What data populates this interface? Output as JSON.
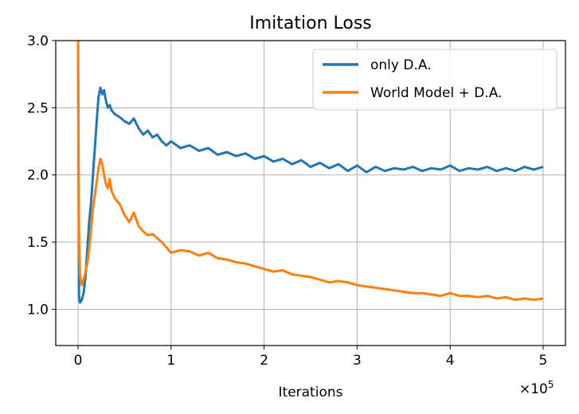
{
  "chart_data": {
    "type": "line",
    "title": "Imitation Loss",
    "xlabel": "Iterations",
    "ylabel": "",
    "x_multiplier_label": "×10",
    "x_multiplier_exponent": "5",
    "xlim": [
      -0.24,
      5.24
    ],
    "ylim": [
      0.73,
      3.0
    ],
    "xticks": [
      0,
      1,
      2,
      3,
      4,
      5
    ],
    "xtick_labels": [
      "0",
      "1",
      "2",
      "3",
      "4",
      "5"
    ],
    "yticks": [
      1.0,
      1.5,
      2.0,
      2.5,
      3.0
    ],
    "ytick_labels": [
      "1.0",
      "1.5",
      "2.0",
      "2.5",
      "3.0"
    ],
    "grid": true,
    "legend_position": "top-right",
    "series": [
      {
        "name": "only D.A.",
        "color": "#1f77b4",
        "x": [
          0,
          0.01,
          0.02,
          0.04,
          0.06,
          0.08,
          0.1,
          0.12,
          0.14,
          0.16,
          0.18,
          0.2,
          0.22,
          0.24,
          0.26,
          0.28,
          0.3,
          0.32,
          0.34,
          0.36,
          0.4,
          0.45,
          0.5,
          0.55,
          0.6,
          0.65,
          0.7,
          0.75,
          0.8,
          0.85,
          0.9,
          0.95,
          1.0,
          1.1,
          1.2,
          1.3,
          1.4,
          1.5,
          1.6,
          1.7,
          1.8,
          1.9,
          2.0,
          2.1,
          2.2,
          2.3,
          2.4,
          2.5,
          2.6,
          2.7,
          2.8,
          2.9,
          3.0,
          3.1,
          3.2,
          3.3,
          3.4,
          3.5,
          3.6,
          3.7,
          3.8,
          3.9,
          4.0,
          4.1,
          4.2,
          4.3,
          4.4,
          4.5,
          4.6,
          4.7,
          4.8,
          4.9,
          5.0
        ],
        "values": [
          3.0,
          1.1,
          1.05,
          1.07,
          1.12,
          1.25,
          1.45,
          1.65,
          1.8,
          2.0,
          2.2,
          2.4,
          2.58,
          2.65,
          2.6,
          2.63,
          2.55,
          2.5,
          2.52,
          2.48,
          2.45,
          2.43,
          2.4,
          2.38,
          2.42,
          2.35,
          2.3,
          2.33,
          2.28,
          2.3,
          2.25,
          2.22,
          2.25,
          2.2,
          2.22,
          2.18,
          2.2,
          2.15,
          2.17,
          2.14,
          2.16,
          2.12,
          2.14,
          2.1,
          2.12,
          2.08,
          2.11,
          2.06,
          2.09,
          2.05,
          2.08,
          2.03,
          2.07,
          2.02,
          2.06,
          2.03,
          2.05,
          2.04,
          2.06,
          2.03,
          2.05,
          2.04,
          2.07,
          2.03,
          2.05,
          2.04,
          2.06,
          2.03,
          2.05,
          2.03,
          2.06,
          2.04,
          2.06
        ]
      },
      {
        "name": "World Model + D.A.",
        "color": "#ff7f0e",
        "x": [
          0,
          0.01,
          0.02,
          0.04,
          0.06,
          0.08,
          0.1,
          0.12,
          0.14,
          0.16,
          0.18,
          0.2,
          0.22,
          0.24,
          0.26,
          0.28,
          0.3,
          0.32,
          0.34,
          0.36,
          0.4,
          0.45,
          0.5,
          0.55,
          0.6,
          0.65,
          0.7,
          0.75,
          0.8,
          0.85,
          0.9,
          0.95,
          1.0,
          1.1,
          1.2,
          1.3,
          1.4,
          1.5,
          1.6,
          1.7,
          1.8,
          1.9,
          2.0,
          2.1,
          2.2,
          2.3,
          2.4,
          2.5,
          2.6,
          2.7,
          2.8,
          2.9,
          3.0,
          3.1,
          3.2,
          3.3,
          3.4,
          3.5,
          3.6,
          3.7,
          3.8,
          3.9,
          4.0,
          4.1,
          4.2,
          4.3,
          4.4,
          4.5,
          4.6,
          4.7,
          4.8,
          4.9,
          5.0
        ],
        "values": [
          3.0,
          1.55,
          1.25,
          1.18,
          1.22,
          1.28,
          1.35,
          1.45,
          1.6,
          1.75,
          1.85,
          1.95,
          2.05,
          2.12,
          2.08,
          2.0,
          1.93,
          1.9,
          1.97,
          1.88,
          1.82,
          1.78,
          1.7,
          1.65,
          1.72,
          1.62,
          1.58,
          1.55,
          1.56,
          1.53,
          1.5,
          1.46,
          1.42,
          1.44,
          1.43,
          1.4,
          1.42,
          1.38,
          1.37,
          1.35,
          1.34,
          1.32,
          1.3,
          1.28,
          1.29,
          1.26,
          1.25,
          1.24,
          1.22,
          1.2,
          1.21,
          1.2,
          1.18,
          1.17,
          1.16,
          1.15,
          1.14,
          1.13,
          1.12,
          1.12,
          1.11,
          1.1,
          1.12,
          1.1,
          1.1,
          1.09,
          1.1,
          1.08,
          1.09,
          1.07,
          1.08,
          1.07,
          1.08
        ]
      }
    ]
  }
}
